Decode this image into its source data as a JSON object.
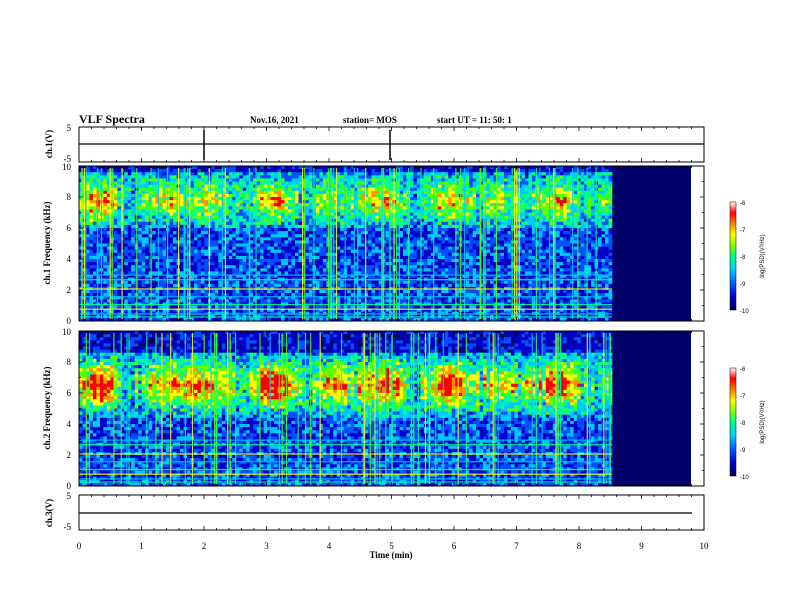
{
  "header": {
    "title": "VLF Spectra",
    "date": "Nov.16, 2021",
    "station": "station= MOS",
    "start": "start UT =  11: 50: 1"
  },
  "colors": {
    "scale": [
      "#000060",
      "#0000c8",
      "#0050ff",
      "#00c8ff",
      "#00ff90",
      "#60ff00",
      "#ffff00",
      "#ff9000",
      "#ff0000",
      "#ffffff"
    ]
  },
  "chart_data": [
    {
      "type": "line",
      "panel": "ch1-waveform",
      "ylabel": "ch.1(V)",
      "ylim": [
        -5,
        5
      ],
      "yticks": [
        "5",
        "-5"
      ],
      "xlim": [
        0,
        10
      ]
    },
    {
      "type": "heatmap",
      "panel": "ch1-spectrogram",
      "ylabel": "ch.1 Frequency (kHz)",
      "ylim": [
        0,
        10
      ],
      "yticks": [
        "0",
        "2",
        "4",
        "6",
        "8",
        "10"
      ],
      "xlim": [
        0,
        10
      ],
      "band_khz": [
        6,
        9.5
      ],
      "colorbar": {
        "label": "log(PSD)(V²/Hz)",
        "range": [
          -10,
          -6
        ],
        "ticks": [
          "-6",
          "-7",
          "-8",
          "-9",
          "-10"
        ]
      }
    },
    {
      "type": "heatmap",
      "panel": "ch2-spectrogram",
      "ylabel": "ch.2 Frequency (kHz)",
      "ylim": [
        0,
        10
      ],
      "yticks": [
        "0",
        "2",
        "4",
        "6",
        "8",
        "10"
      ],
      "xlim": [
        0,
        10
      ],
      "band_khz": [
        4.5,
        8.5
      ],
      "colorbar": {
        "label": "log(PSD)(V²/Hz)",
        "range": [
          -10,
          -6
        ],
        "ticks": [
          "-6",
          "-7",
          "-8",
          "-9",
          "-10"
        ]
      }
    },
    {
      "type": "line",
      "panel": "ch3-waveform",
      "ylabel": "ch.3(V)",
      "ylim": [
        -5,
        5
      ],
      "yticks": [
        "5",
        "-5"
      ],
      "xlim": [
        0,
        10
      ]
    }
  ],
  "xaxis": {
    "label": "Time  (min)",
    "ticks": [
      "0",
      "1",
      "2",
      "3",
      "4",
      "5",
      "6",
      "7",
      "8",
      "9",
      "10"
    ]
  }
}
